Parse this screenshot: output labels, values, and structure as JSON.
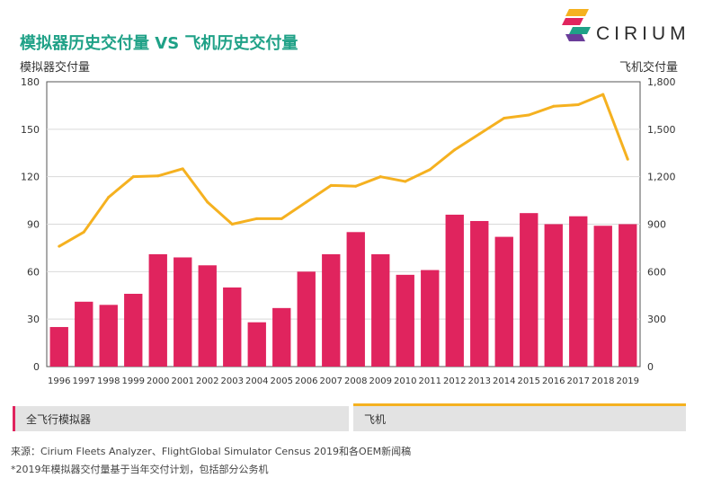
{
  "title": "模拟器历史交付量 VS 飞机历史交付量",
  "brand": "CIRIUM",
  "left_axis_label": "模拟器交付量",
  "right_axis_label": "飞机交付量",
  "legend": {
    "simulator": "全飞行模拟器",
    "aircraft": "飞机"
  },
  "footnotes": {
    "source": "来源：Cirium Fleets Analyzer、FlightGlobal Simulator Census 2019和各OEM新闻稿",
    "note": "*2019年模拟器交付量基于当年交付计划，包括部分公务机"
  },
  "colors": {
    "bar": "#e0245e",
    "line": "#f5b120",
    "title": "#1fa187"
  },
  "chart_data": {
    "type": "bar",
    "categories": [
      "1996",
      "1997",
      "1998",
      "1999",
      "2000",
      "2001",
      "2002",
      "2003",
      "2004",
      "2005",
      "2006",
      "2007",
      "2008",
      "2009",
      "2010",
      "2011",
      "2012",
      "2013",
      "2014",
      "2015",
      "2016",
      "2017",
      "2018",
      "2019"
    ],
    "series": [
      {
        "name": "全飞行模拟器",
        "type": "bar",
        "axis": "left",
        "values": [
          25,
          41,
          39,
          46,
          71,
          69,
          64,
          50,
          28,
          37,
          60,
          71,
          85,
          71,
          58,
          61,
          96,
          92,
          82,
          97,
          90,
          95,
          89,
          90
        ]
      },
      {
        "name": "飞机",
        "type": "line",
        "axis": "right",
        "values": [
          760,
          850,
          1070,
          1200,
          1205,
          1250,
          1040,
          900,
          935,
          935,
          1040,
          1145,
          1140,
          1200,
          1170,
          1245,
          1370,
          1470,
          1570,
          1590,
          1645,
          1655,
          1720,
          1310
        ]
      }
    ],
    "ylim_left": [
      0,
      180
    ],
    "yticks_left": [
      "0",
      "30",
      "60",
      "90",
      "120",
      "150",
      "180"
    ],
    "ylim_right": [
      0,
      1800
    ],
    "yticks_right": [
      "0",
      "300",
      "600",
      "900",
      "1,200",
      "1,500",
      "1,800"
    ],
    "grid": true
  }
}
